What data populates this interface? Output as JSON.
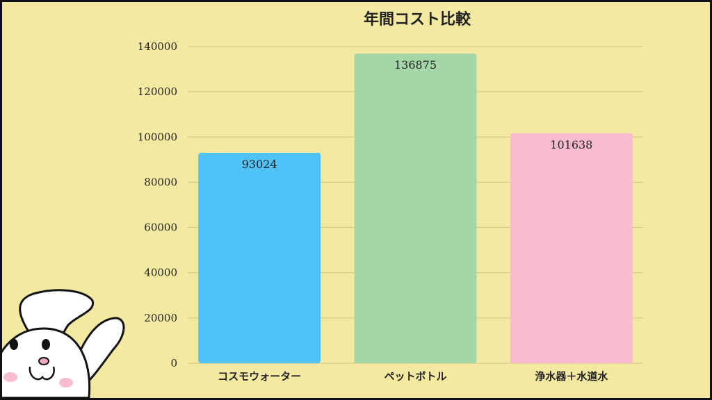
{
  "chart_data": {
    "type": "bar",
    "title": "年間コスト比較",
    "categories": [
      "コスモウォーター",
      "ペットボトル",
      "浄水器＋水道水"
    ],
    "values": [
      93024,
      136875,
      101638
    ],
    "data_labels": [
      "93024",
      "136875",
      "101638"
    ],
    "yticks": [
      "0",
      "20000",
      "40000",
      "60000",
      "80000",
      "100000",
      "120000",
      "140000"
    ],
    "ylim": [
      0,
      140000
    ],
    "grid": true,
    "xlabel": "",
    "ylabel": ""
  },
  "colors": {
    "background": "#f4e9a1",
    "bars": [
      "#4fc3f7",
      "#a5d6a7",
      "#f8bbd0"
    ],
    "grid": "#cfc38a"
  },
  "decoration": {
    "mascot": "rabbit-mascot-icon"
  }
}
